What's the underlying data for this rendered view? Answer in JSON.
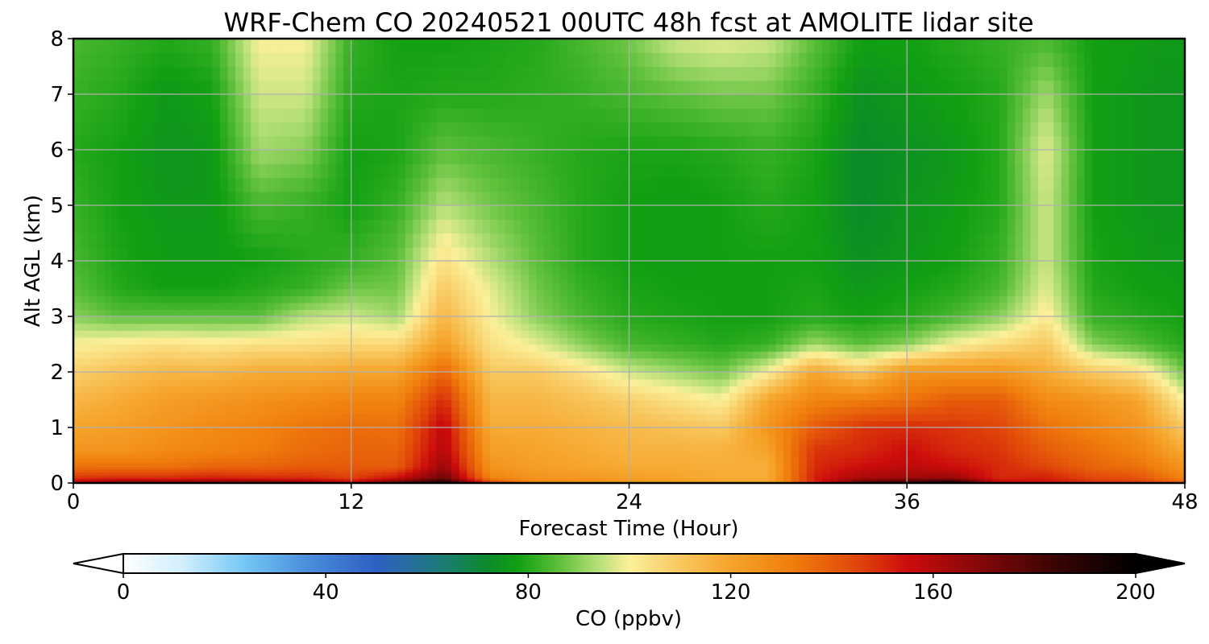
{
  "chart_data": {
    "type": "heatmap",
    "title": "WRF-Chem CO  20240521 00UTC 48h fcst at AMOLITE lidar site",
    "xlabel": "Forecast Time (Hour)",
    "ylabel": "Alt AGL (km)",
    "xlim": [
      0,
      48
    ],
    "ylim": [
      0,
      8
    ],
    "x_ticks": [
      "0",
      "12",
      "24",
      "36",
      "48"
    ],
    "y_ticks": [
      "0",
      "1",
      "2",
      "3",
      "4",
      "5",
      "6",
      "7",
      "8"
    ],
    "grid": true,
    "colorbar": {
      "label": "CO  (ppbv)",
      "range": [
        0,
        200
      ],
      "ticks": [
        "0",
        "40",
        "80",
        "120",
        "160",
        "200"
      ],
      "extend": "both",
      "stops": [
        {
          "v": 0,
          "c": "#ffffff"
        },
        {
          "v": 12,
          "c": "#cfeefc"
        },
        {
          "v": 24,
          "c": "#74c7f5"
        },
        {
          "v": 36,
          "c": "#4a8fdc"
        },
        {
          "v": 50,
          "c": "#2f5fc4"
        },
        {
          "v": 62,
          "c": "#1e7a7c"
        },
        {
          "v": 72,
          "c": "#0a8a2a"
        },
        {
          "v": 78,
          "c": "#12a012"
        },
        {
          "v": 86,
          "c": "#5cbf3a"
        },
        {
          "v": 94,
          "c": "#b8e07a"
        },
        {
          "v": 100,
          "c": "#fbf09a"
        },
        {
          "v": 110,
          "c": "#f8c860"
        },
        {
          "v": 120,
          "c": "#f6a42a"
        },
        {
          "v": 132,
          "c": "#f07e0c"
        },
        {
          "v": 145,
          "c": "#e0460a"
        },
        {
          "v": 155,
          "c": "#cc0c0c"
        },
        {
          "v": 168,
          "c": "#8a0808"
        },
        {
          "v": 184,
          "c": "#3a0404"
        },
        {
          "v": 200,
          "c": "#000000"
        }
      ]
    },
    "times": [
      0,
      2,
      4,
      6,
      8,
      10,
      12,
      14,
      16,
      18,
      20,
      22,
      24,
      26,
      28,
      30,
      32,
      34,
      36,
      38,
      40,
      42,
      44,
      46,
      48
    ],
    "levels": [
      0,
      0.1,
      0.3,
      0.6,
      1.0,
      1.5,
      2.0,
      2.5,
      3.0,
      3.5,
      4.0,
      5.0,
      6.0,
      7.0,
      8.0
    ],
    "values": [
      [
        160,
        175,
        172,
        174,
        176,
        170,
        160,
        180,
        195,
        150,
        130,
        128,
        126,
        124,
        122,
        120,
        150,
        180,
        190,
        198,
        160,
        155,
        150,
        148,
        140
      ],
      [
        148,
        150,
        150,
        152,
        150,
        150,
        146,
        155,
        175,
        130,
        125,
        124,
        122,
        120,
        118,
        118,
        152,
        162,
        165,
        165,
        150,
        152,
        145,
        142,
        130
      ],
      [
        135,
        135,
        135,
        138,
        138,
        140,
        140,
        140,
        165,
        125,
        122,
        120,
        118,
        118,
        117,
        117,
        150,
        155,
        158,
        155,
        150,
        145,
        138,
        135,
        125
      ],
      [
        125,
        125,
        128,
        130,
        132,
        136,
        138,
        138,
        160,
        122,
        120,
        118,
        116,
        116,
        116,
        120,
        148,
        150,
        155,
        150,
        148,
        140,
        135,
        130,
        118
      ],
      [
        120,
        122,
        125,
        128,
        130,
        134,
        136,
        135,
        158,
        118,
        118,
        116,
        114,
        112,
        110,
        125,
        140,
        148,
        150,
        148,
        145,
        135,
        130,
        125,
        110
      ],
      [
        115,
        118,
        122,
        124,
        126,
        128,
        130,
        130,
        150,
        115,
        115,
        112,
        108,
        104,
        100,
        120,
        130,
        132,
        135,
        140,
        140,
        128,
        125,
        120,
        100
      ],
      [
        108,
        112,
        115,
        115,
        118,
        118,
        120,
        120,
        138,
        110,
        110,
        104,
        96,
        92,
        88,
        100,
        120,
        110,
        125,
        125,
        125,
        118,
        110,
        105,
        88
      ],
      [
        100,
        102,
        104,
        102,
        104,
        104,
        106,
        106,
        122,
        104,
        98,
        90,
        84,
        82,
        80,
        82,
        92,
        86,
        90,
        100,
        105,
        110,
        90,
        85,
        80
      ],
      [
        90,
        86,
        86,
        86,
        86,
        94,
        96,
        92,
        115,
        100,
        90,
        84,
        80,
        79,
        78,
        78,
        80,
        78,
        80,
        84,
        90,
        102,
        82,
        80,
        78
      ],
      [
        86,
        80,
        78,
        78,
        80,
        82,
        88,
        88,
        110,
        98,
        88,
        82,
        79,
        78,
        78,
        78,
        79,
        76,
        78,
        80,
        84,
        98,
        80,
        78,
        77
      ],
      [
        84,
        79,
        77,
        77,
        78,
        80,
        82,
        86,
        104,
        94,
        86,
        80,
        78,
        77,
        78,
        78,
        78,
        74,
        76,
        78,
        82,
        96,
        79,
        77,
        76
      ],
      [
        82,
        78,
        76,
        76,
        84,
        82,
        78,
        82,
        94,
        88,
        84,
        80,
        78,
        77,
        78,
        80,
        78,
        72,
        75,
        77,
        80,
        96,
        78,
        76,
        75
      ],
      [
        80,
        78,
        75,
        76,
        92,
        90,
        78,
        79,
        86,
        84,
        82,
        80,
        79,
        79,
        80,
        82,
        79,
        72,
        74,
        76,
        80,
        98,
        78,
        76,
        75
      ],
      [
        82,
        80,
        76,
        78,
        96,
        96,
        80,
        79,
        80,
        80,
        81,
        82,
        84,
        86,
        88,
        88,
        82,
        74,
        76,
        78,
        80,
        92,
        78,
        76,
        75
      ],
      [
        84,
        82,
        80,
        82,
        100,
        100,
        82,
        78,
        78,
        79,
        80,
        84,
        88,
        96,
        98,
        96,
        86,
        78,
        78,
        80,
        82,
        84,
        78,
        77,
        76
      ]
    ]
  }
}
